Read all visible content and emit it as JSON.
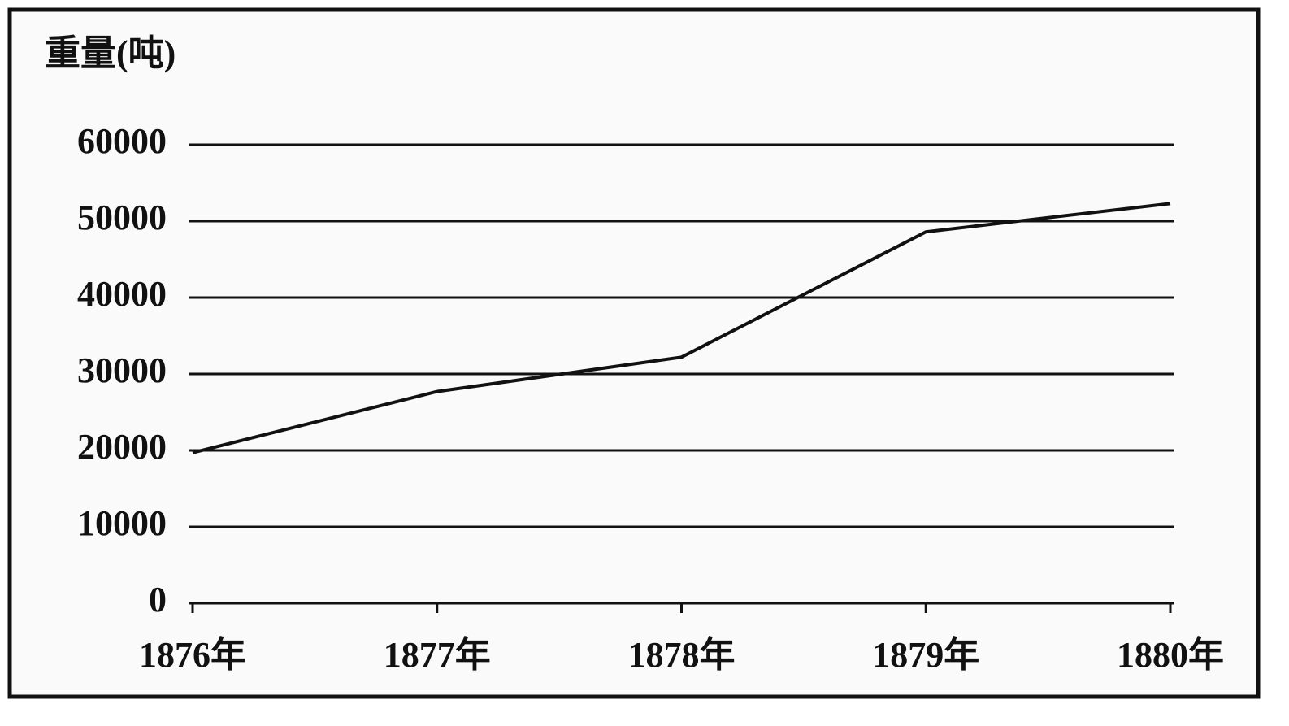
{
  "chart_data": {
    "type": "line",
    "y_label": "重量(吨)",
    "categories": [
      "1876年",
      "1877年",
      "1878年",
      "1879年",
      "1880年"
    ],
    "values": [
      19700,
      27700,
      32200,
      48600,
      52300
    ],
    "color": "#111111",
    "ylim": [
      0,
      60000
    ],
    "yticks": [
      0,
      10000,
      20000,
      30000,
      40000,
      50000,
      60000
    ],
    "grid": true
  }
}
